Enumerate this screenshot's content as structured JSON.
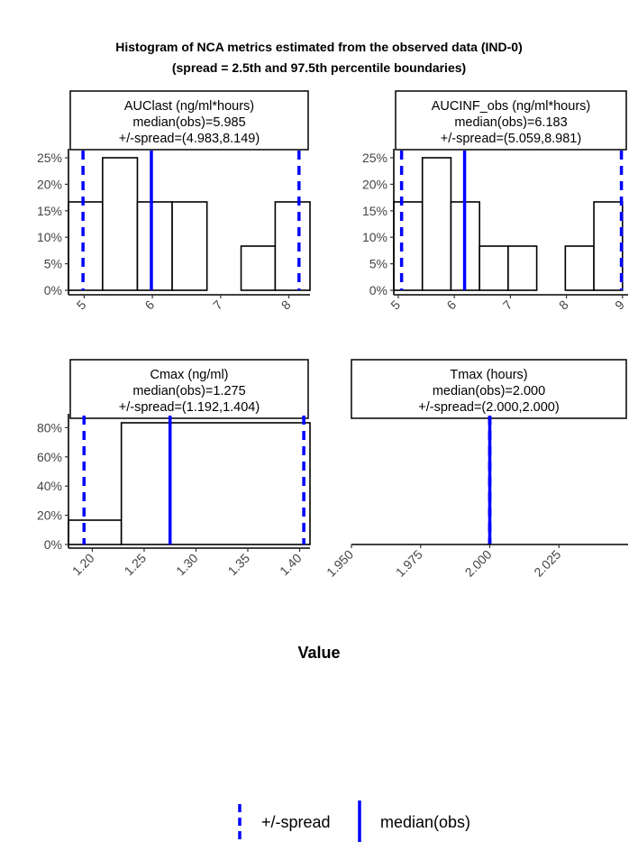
{
  "title_line1": "Histogram of NCA metrics estimated from the observed data (IND-0)",
  "title_line2": "(spread = 2.5th and 97.5th percentile boundaries)",
  "xlabel": "Value",
  "legend": {
    "spread_label": "+/-spread",
    "median_label": "median(obs)"
  },
  "colors": {
    "reference": "#0000ff",
    "bar_outline": "#000000",
    "bar_fill": "#ffffff"
  },
  "chart_data": [
    {
      "type": "bar",
      "strip": [
        "AUClast (ng/ml*hours)",
        "median(obs)=5.985",
        "+/-spread=(4.983,8.149)"
      ],
      "bin_edges": [
        4.77,
        5.27,
        5.78,
        6.29,
        6.8,
        7.3,
        7.8,
        8.31
      ],
      "values": [
        16.67,
        25,
        16.67,
        16.67,
        0,
        8.33,
        16.67
      ],
      "median": 5.985,
      "spread": [
        4.983,
        8.149
      ],
      "xlim": [
        4.77,
        8.31
      ],
      "ylim": [
        0,
        25
      ],
      "xticks": [
        5,
        6,
        7,
        8
      ],
      "xtick_labels": [
        "5",
        "6",
        "7",
        "8"
      ],
      "yticks": [
        0,
        5,
        10,
        15,
        20,
        25
      ],
      "ytick_labels": [
        "0%",
        "5%",
        "10%",
        "15%",
        "20%",
        "25%"
      ]
    },
    {
      "type": "bar",
      "strip": [
        "AUCINF_obs (ng/ml*hours)",
        "median(obs)=6.183",
        "+/-spread=(5.059,8.981)"
      ],
      "bin_edges": [
        4.92,
        5.43,
        5.94,
        6.45,
        6.96,
        7.47,
        7.98,
        8.49,
        9.0
      ],
      "values": [
        16.67,
        25,
        16.67,
        8.33,
        8.33,
        0,
        8.33,
        16.67
      ],
      "median": 6.183,
      "spread": [
        5.059,
        8.981
      ],
      "xlim": [
        4.92,
        9.1
      ],
      "ylim": [
        0,
        25
      ],
      "xticks": [
        5,
        6,
        7,
        8,
        9
      ],
      "xtick_labels": [
        "5",
        "6",
        "7",
        "8",
        "9"
      ],
      "yticks": [
        0,
        5,
        10,
        15,
        20,
        25
      ],
      "ytick_labels": [
        "0%",
        "5%",
        "10%",
        "15%",
        "20%",
        "25%"
      ]
    },
    {
      "type": "bar",
      "strip": [
        "Cmax (ng/ml)",
        "median(obs)=1.275",
        "+/-spread=(1.192,1.404)"
      ],
      "bin_edges": [
        1.177,
        1.228,
        1.41
      ],
      "values": [
        16.67,
        83.33
      ],
      "median": 1.275,
      "spread": [
        1.192,
        1.404
      ],
      "xlim": [
        1.177,
        1.41
      ],
      "ylim": [
        0,
        83.33
      ],
      "xticks": [
        1.2,
        1.25,
        1.3,
        1.35,
        1.4
      ],
      "xtick_labels": [
        "1.20",
        "1.25",
        "1.30",
        "1.35",
        "1.40"
      ],
      "yticks": [
        0,
        20,
        40,
        60,
        80
      ],
      "ytick_labels": [
        "0%",
        "20%",
        "40%",
        "60%",
        "80%"
      ]
    },
    {
      "type": "bar",
      "strip": [
        "Tmax (hours)",
        "median(obs)=2.000",
        "+/-spread=(2.000,2.000)"
      ],
      "bin_edges": [],
      "values": [],
      "median": 2.0,
      "spread": [
        2.0,
        2.0
      ],
      "xlim": [
        1.95,
        2.05
      ],
      "ylim": [
        0,
        83.33
      ],
      "xticks": [
        1.95,
        1.975,
        2.0,
        2.025
      ],
      "xtick_labels": [
        "1.950",
        "1.975",
        "2.000",
        "2.025"
      ],
      "yticks": [],
      "ytick_labels": []
    }
  ]
}
